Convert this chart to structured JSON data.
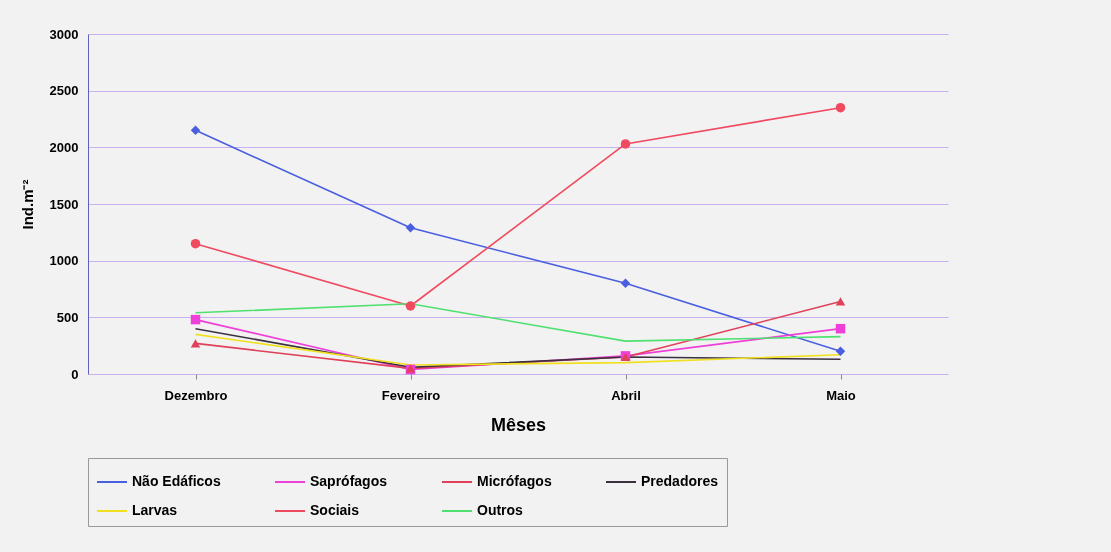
{
  "chart_data": {
    "type": "line",
    "xlabel": "Mêses",
    "ylabel": "Ind.m⁻²",
    "categories": [
      "Dezembro",
      "Fevereiro",
      "Abril",
      "Maio"
    ],
    "series": [
      {
        "name": "Não Edáficos",
        "color": "#4a5ee0",
        "marker": "diamond",
        "values": [
          2150,
          1290,
          800,
          200
        ]
      },
      {
        "name": "Saprófagos",
        "color": "#ee3fd8",
        "marker": "square",
        "values": [
          480,
          40,
          160,
          400
        ]
      },
      {
        "name": "Micrófagos",
        "color": "#e0405a",
        "marker": "triangle",
        "values": [
          270,
          50,
          150,
          640
        ]
      },
      {
        "name": "Predadores",
        "color": "#3a3040",
        "marker": "none",
        "values": [
          400,
          60,
          150,
          130
        ]
      },
      {
        "name": "Larvas",
        "color": "#f0e020",
        "marker": "none",
        "values": [
          350,
          80,
          100,
          170
        ]
      },
      {
        "name": "Sociais",
        "color": "#f04a60",
        "marker": "circle",
        "values": [
          1150,
          600,
          2030,
          2350
        ]
      },
      {
        "name": "Outros",
        "color": "#50e070",
        "marker": "none",
        "values": [
          540,
          620,
          290,
          330
        ]
      }
    ],
    "ylim": [
      0,
      3000
    ],
    "yticks": [
      0,
      500,
      1000,
      1500,
      2000,
      2500,
      3000
    ],
    "grid": "y",
    "legend": "bottom"
  }
}
